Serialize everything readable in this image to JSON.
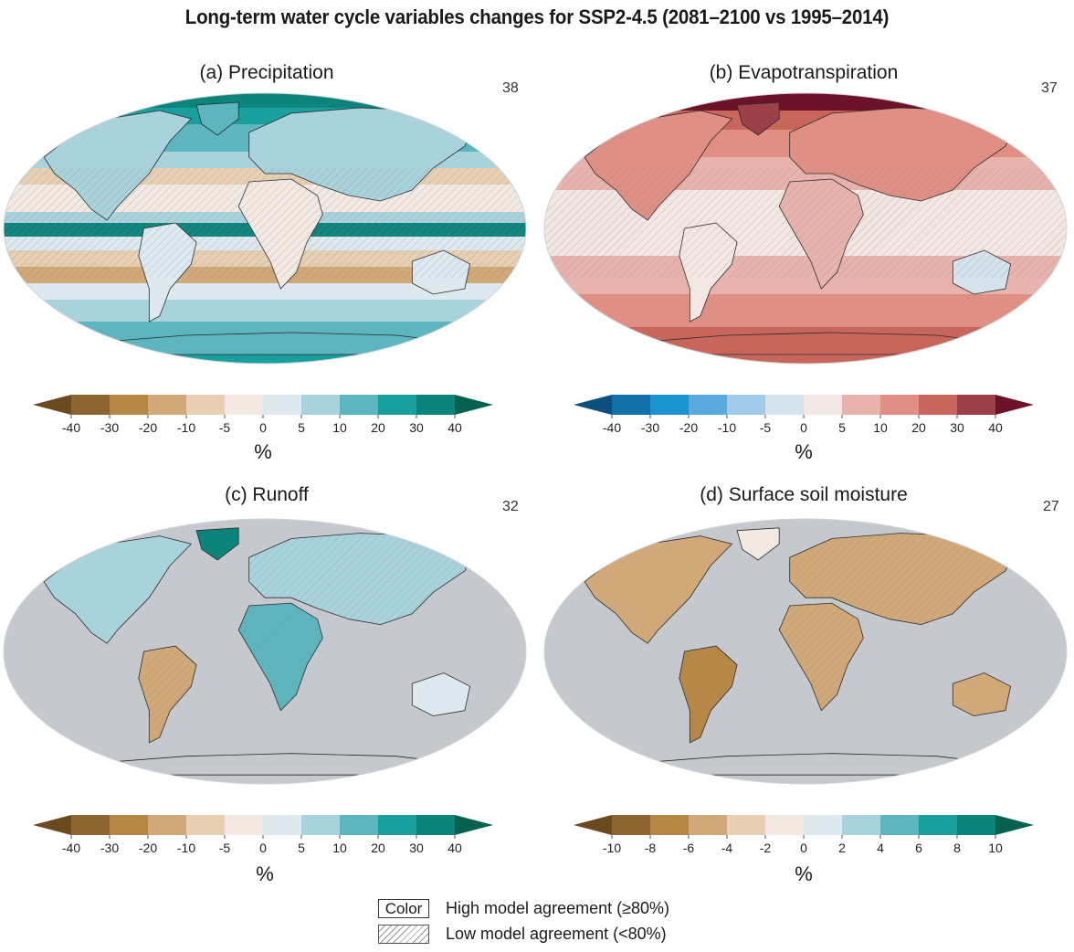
{
  "figure": {
    "title": "Long-term water cycle variables changes for SSP2-4.5 (2081–2100 vs 1995–2014)"
  },
  "panels": [
    {
      "id": "a",
      "title": "(a) Precipitation",
      "models": "38",
      "variable": "precipitation",
      "land_only": false
    },
    {
      "id": "b",
      "title": "(b) Evapotranspiration",
      "models": "37",
      "variable": "evapotranspiration",
      "land_only": false
    },
    {
      "id": "c",
      "title": "(c) Runoff",
      "models": "32",
      "variable": "runoff",
      "land_only": true
    },
    {
      "id": "d",
      "title": "(d) Surface soil moisture",
      "models": "27",
      "variable": "soil_moisture",
      "land_only": true
    }
  ],
  "colorbars": [
    {
      "id": "cbar-a",
      "ticks": [
        "-40",
        "-30",
        "-20",
        "-10",
        "-5",
        "0",
        "5",
        "10",
        "20",
        "30",
        "40"
      ],
      "unit": "%",
      "colors": [
        "#6b4a1f",
        "#8c6530",
        "#b98745",
        "#d1a877",
        "#e6cfb2",
        "#f2e9e3",
        "#dde9ef",
        "#a8d2dc",
        "#5cb5bf",
        "#1a9f9f",
        "#0d847b",
        "#08604f"
      ]
    },
    {
      "id": "cbar-b",
      "ticks": [
        "-40",
        "-30",
        "-20",
        "-10",
        "-5",
        "0",
        "5",
        "10",
        "20",
        "30",
        "40"
      ],
      "unit": "%",
      "colors": [
        "#0b4f7f",
        "#1170a8",
        "#1b93cf",
        "#5aaade",
        "#a2cbe8",
        "#d6e2ec",
        "#f3e7e4",
        "#e9b3ad",
        "#e08f85",
        "#c9665c",
        "#9b4048",
        "#6d1329"
      ]
    },
    {
      "id": "cbar-c",
      "ticks": [
        "-40",
        "-30",
        "-20",
        "-10",
        "-5",
        "0",
        "5",
        "10",
        "20",
        "30",
        "40"
      ],
      "unit": "%",
      "colors": [
        "#6b4a1f",
        "#8c6530",
        "#b98745",
        "#d1a877",
        "#e6cfb2",
        "#f2e9e3",
        "#dde9ef",
        "#a8d2dc",
        "#5cb5bf",
        "#1a9f9f",
        "#0d847b",
        "#08604f"
      ]
    },
    {
      "id": "cbar-d",
      "ticks": [
        "-10",
        "-8",
        "-6",
        "-4",
        "-2",
        "0",
        "2",
        "4",
        "6",
        "8",
        "10"
      ],
      "unit": "%",
      "colors": [
        "#6b4a1f",
        "#8c6530",
        "#b98745",
        "#d1a877",
        "#e6cfb2",
        "#f2e9e3",
        "#dde9ef",
        "#a8d2dc",
        "#5cb5bf",
        "#1a9f9f",
        "#0d847b",
        "#08604f"
      ]
    }
  ],
  "legend": {
    "color_label": "Color",
    "high_agreement": "High model agreement (≥80%)",
    "low_agreement": "Low model agreement (<80%)"
  },
  "map_colors": {
    "ocean_masked": "#c5c8cc",
    "coast": "#2b2b2b"
  }
}
